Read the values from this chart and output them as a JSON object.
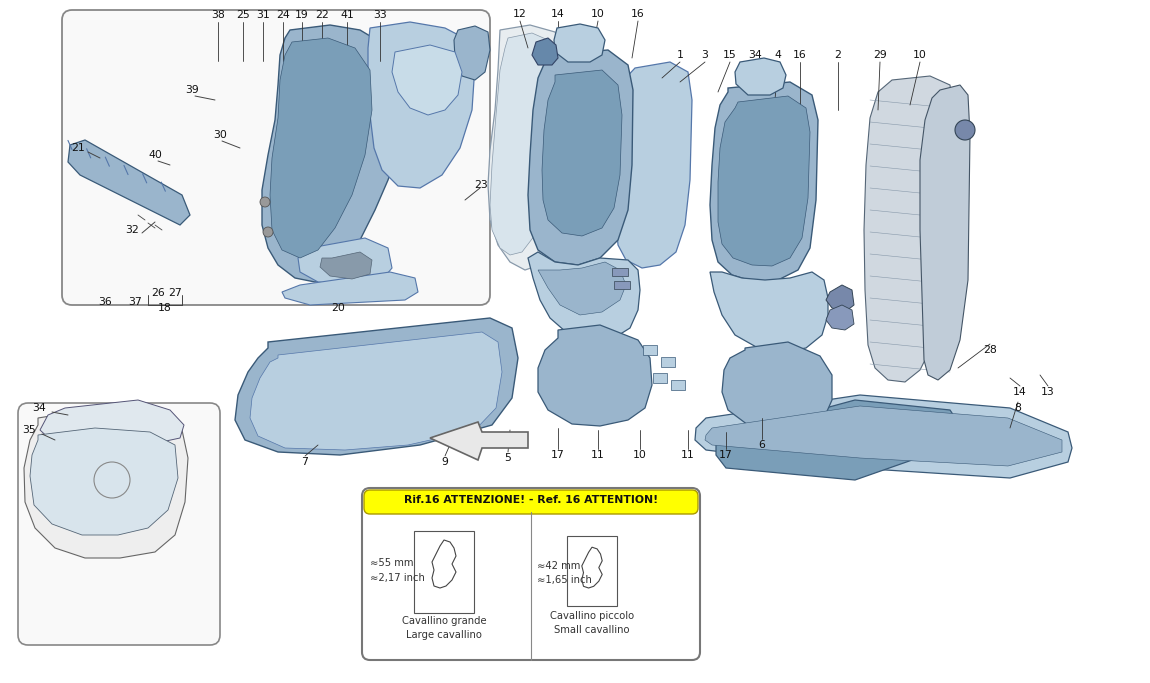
{
  "bg_color": "#ffffff",
  "blue1": "#9ab5cc",
  "blue2": "#b8cfe0",
  "blue3": "#7a9eb8",
  "blue4": "#c8dce8",
  "gray1": "#cccccc",
  "gray2": "#aaaaaa",
  "edge_dark": "#3a5a78",
  "edge_mid": "#5577aa",
  "edge_lt": "#8899bb",
  "lc": "#333333",
  "attention_text": "Rif.16 ATTENZIONE! - Ref. 16 ATTENTION!",
  "attention_bg": "#ffff00",
  "cav_grande": [
    "≈55 mm",
    "≈2,17 inch",
    "Cavallino grande",
    "Large cavallino"
  ],
  "cav_piccolo": [
    "≈42 mm",
    "≈1,65 inch",
    "Cavallino piccolo",
    "Small cavallino"
  ],
  "fs_label": 7.8
}
